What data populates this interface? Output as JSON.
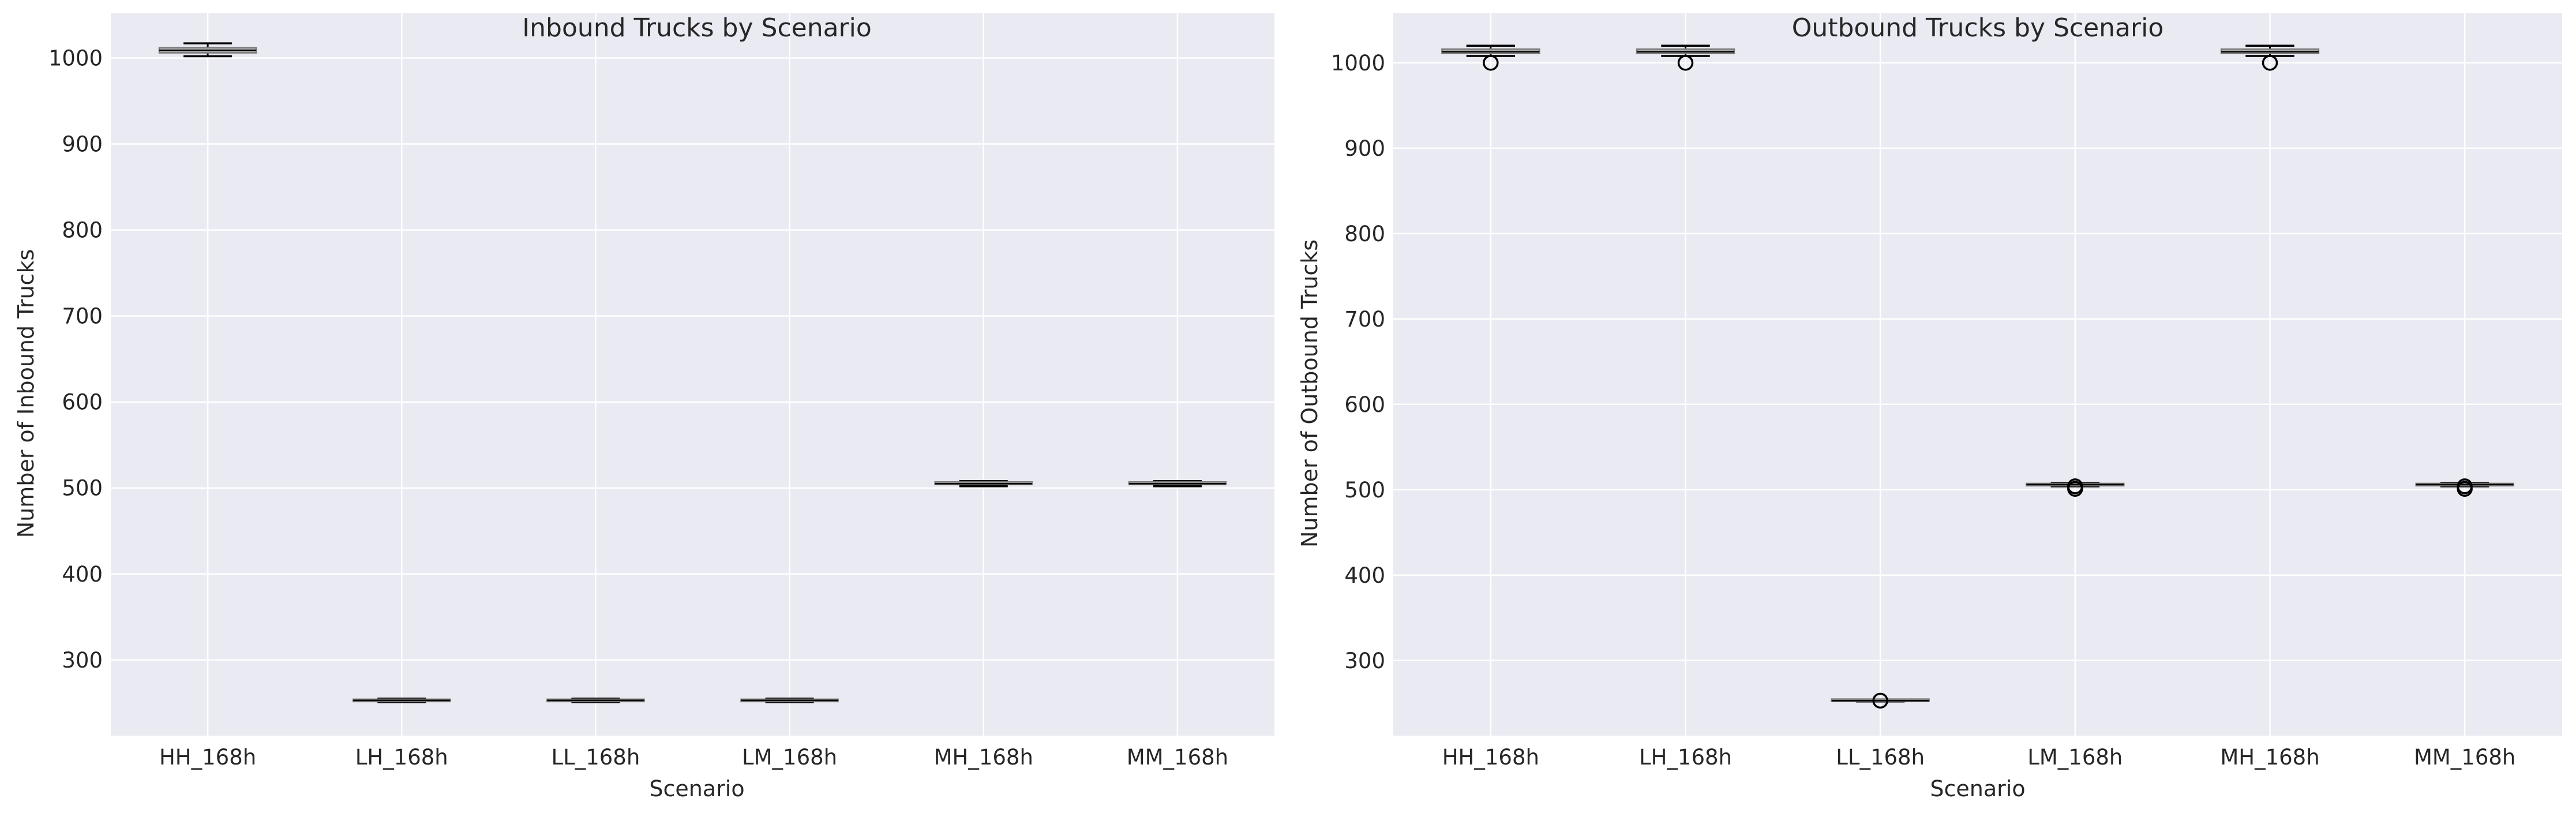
{
  "chart_data": [
    {
      "type": "box",
      "title": "Inbound Trucks by Scenario",
      "xlabel": "Scenario",
      "ylabel": "Number of Inbound Trucks",
      "ylim": [
        212,
        1052
      ],
      "yticks": [
        300,
        400,
        500,
        600,
        700,
        800,
        900,
        1000
      ],
      "grid": true,
      "categories": [
        "HH_168h",
        "LH_168h",
        "LL_168h",
        "LM_168h",
        "MH_168h",
        "MM_168h"
      ],
      "boxes": [
        {
          "category": "HH_168h",
          "whisker_low": 1002,
          "q1": 1006,
          "median": 1009,
          "q3": 1012,
          "whisker_high": 1017,
          "outliers": []
        },
        {
          "category": "LH_168h",
          "whisker_low": 251,
          "q1": 252,
          "median": 253,
          "q3": 254,
          "whisker_high": 255,
          "outliers": []
        },
        {
          "category": "LL_168h",
          "whisker_low": 251,
          "q1": 252,
          "median": 253,
          "q3": 254,
          "whisker_high": 255,
          "outliers": []
        },
        {
          "category": "LM_168h",
          "whisker_low": 251,
          "q1": 252,
          "median": 253,
          "q3": 254,
          "whisker_high": 255,
          "outliers": []
        },
        {
          "category": "MH_168h",
          "whisker_low": 502,
          "q1": 504,
          "median": 505,
          "q3": 507,
          "whisker_high": 508,
          "outliers": []
        },
        {
          "category": "MM_168h",
          "whisker_low": 502,
          "q1": 504,
          "median": 505,
          "q3": 507,
          "whisker_high": 508,
          "outliers": []
        }
      ]
    },
    {
      "type": "box",
      "title": "Outbound Trucks by Scenario",
      "xlabel": "Scenario",
      "ylabel": "Number of Outbound Trucks",
      "ylim": [
        212,
        1058
      ],
      "yticks": [
        300,
        400,
        500,
        600,
        700,
        800,
        900,
        1000
      ],
      "grid": true,
      "categories": [
        "HH_168h",
        "LH_168h",
        "LL_168h",
        "LM_168h",
        "MH_168h",
        "MM_168h"
      ],
      "boxes": [
        {
          "category": "HH_168h",
          "whisker_low": 1008,
          "q1": 1011,
          "median": 1013,
          "q3": 1016,
          "whisker_high": 1020,
          "outliers": [
            1000
          ]
        },
        {
          "category": "LH_168h",
          "whisker_low": 1008,
          "q1": 1011,
          "median": 1013,
          "q3": 1016,
          "whisker_high": 1020,
          "outliers": [
            1000
          ]
        },
        {
          "category": "LL_168h",
          "whisker_low": 252,
          "q1": 253,
          "median": 253,
          "q3": 254,
          "whisker_high": 254,
          "outliers": [
            253
          ]
        },
        {
          "category": "LM_168h",
          "whisker_low": 504,
          "q1": 505,
          "median": 506,
          "q3": 507,
          "whisker_high": 508,
          "outliers": [
            501,
            504
          ]
        },
        {
          "category": "MH_168h",
          "whisker_low": 1008,
          "q1": 1011,
          "median": 1013,
          "q3": 1016,
          "whisker_high": 1020,
          "outliers": [
            1000
          ]
        },
        {
          "category": "MM_168h",
          "whisker_low": 504,
          "q1": 505,
          "median": 506,
          "q3": 507,
          "whisker_high": 508,
          "outliers": [
            501,
            504
          ]
        }
      ]
    }
  ],
  "colors": {
    "plot_background": "#eaeaf2",
    "grid": "#ffffff",
    "box_fill": "#b0b0b0",
    "box_edge": "#7a7a7a",
    "whisker": "#000000",
    "median": "#000000",
    "text": "#262626"
  }
}
